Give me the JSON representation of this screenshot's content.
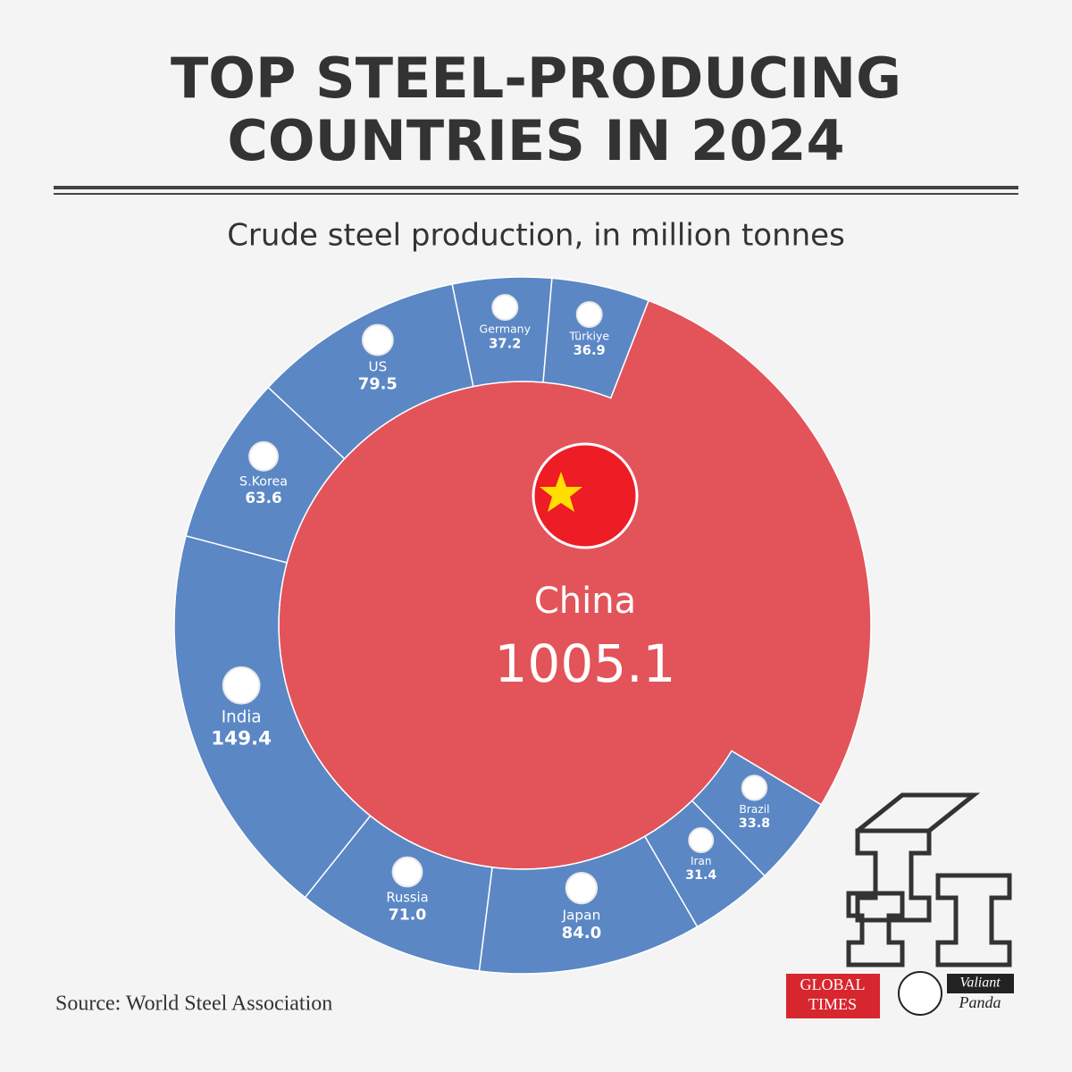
{
  "chart_data": {
    "type": "circle-treemap",
    "title_lines": [
      "TOP STEEL-PRODUCING",
      "COUNTRIES IN 2024"
    ],
    "subtitle": "Crude steel production, in million tonnes",
    "categories": [
      "China",
      "Brazil",
      "Iran",
      "Japan",
      "Russia",
      "India",
      "S.Korea",
      "US",
      "Germany",
      "Türkiye"
    ],
    "values": [
      1005.1,
      33.8,
      31.4,
      84.0,
      71.0,
      149.4,
      63.6,
      79.5,
      37.2,
      36.9
    ],
    "value_labels": [
      "1005.1",
      "33.8",
      "31.4",
      "84.0",
      "71.0",
      "149.4",
      "63.6",
      "79.5",
      "37.2",
      "36.9"
    ],
    "colors": [
      "#e2545a",
      "#5b87c5",
      "#5b87c5",
      "#5b87c5",
      "#5b87c5",
      "#5b87c5",
      "#5b87c5",
      "#5b87c5",
      "#5b87c5",
      "#5b87c5"
    ],
    "source": "Source: World Steel Association",
    "logos": [
      "GLOBAL",
      "TIMES",
      "Valiant",
      "Panda"
    ]
  }
}
